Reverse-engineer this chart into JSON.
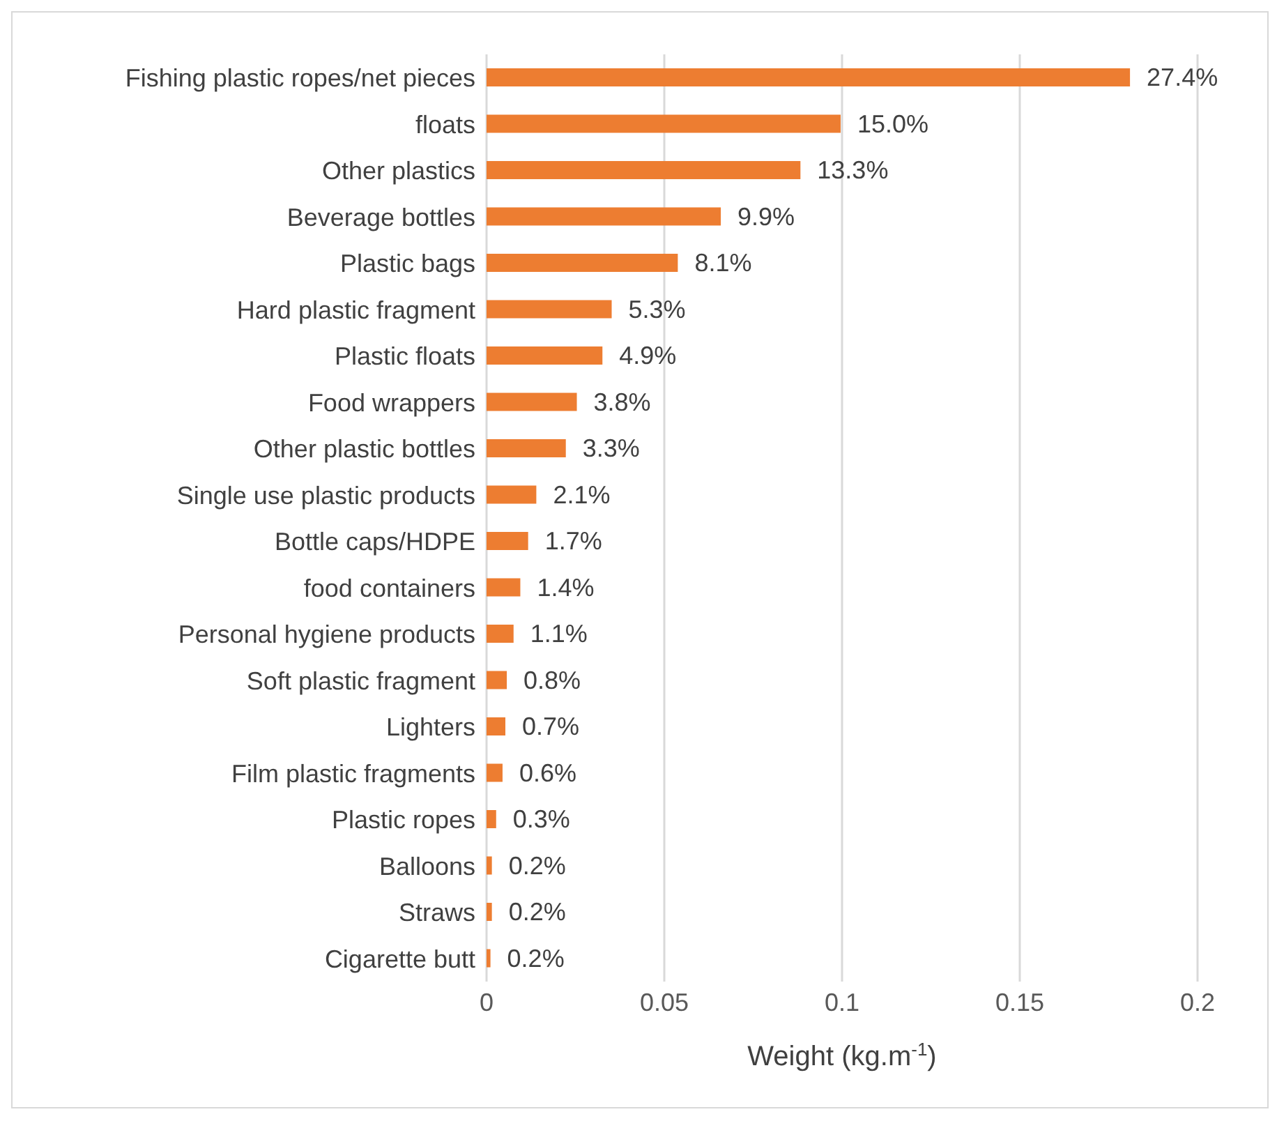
{
  "chart_data": {
    "type": "bar",
    "orientation": "horizontal",
    "xlabel": "Weight (kg.m$^{-1}$)",
    "categories": [
      "Fishing plastic ropes/net pieces",
      "floats",
      "Other plastics",
      "Beverage bottles",
      "Plastic bags",
      "Hard plastic fragment",
      "Plastic floats",
      "Food wrappers",
      "Other plastic bottles",
      "Single use plastic products",
      "Bottle caps/HDPE",
      "food containers",
      "Personal hygiene products",
      "Soft plastic fragment",
      "Lighters",
      "Film plastic fragments",
      "Plastic ropes",
      "Balloons",
      "Straws",
      "Cigarette butt"
    ],
    "values": [
      0.181,
      0.0996,
      0.0883,
      0.0659,
      0.0538,
      0.0352,
      0.0326,
      0.0254,
      0.0223,
      0.014,
      0.0117,
      0.0095,
      0.0076,
      0.0057,
      0.0053,
      0.0045,
      0.0027,
      0.0015,
      0.0015,
      0.0011
    ],
    "annotations": [
      {
        "text": "27.4%",
        "x": 0.181,
        "y": "Fishing plastic ropes/net pieces"
      },
      {
        "text": "15.0%",
        "x": 0.0996,
        "y": "floats"
      },
      {
        "text": "13.3%",
        "x": 0.0883,
        "y": "Other plastics"
      },
      {
        "text": "9.9%",
        "x": 0.0659,
        "y": "Beverage bottles"
      },
      {
        "text": "8.1%",
        "x": 0.0538,
        "y": "Plastic bags"
      },
      {
        "text": "5.3%",
        "x": 0.0352,
        "y": "Hard plastic fragment"
      },
      {
        "text": "4.9%",
        "x": 0.0326,
        "y": "Plastic floats"
      },
      {
        "text": "3.8%",
        "x": 0.0254,
        "y": "Food wrappers"
      },
      {
        "text": "3.3%",
        "x": 0.0223,
        "y": "Other plastic bottles"
      },
      {
        "text": "2.1%",
        "x": 0.014,
        "y": "Single use plastic products"
      },
      {
        "text": "1.7%",
        "x": 0.0117,
        "y": "Bottle caps/HDPE"
      },
      {
        "text": "1.4%",
        "x": 0.0095,
        "y": "food containers"
      },
      {
        "text": "1.1%",
        "x": 0.0076,
        "y": "Personal hygiene products"
      },
      {
        "text": "0.8%",
        "x": 0.0057,
        "y": "Soft plastic fragment"
      },
      {
        "text": "0.7%",
        "x": 0.0053,
        "y": "Lighters"
      },
      {
        "text": "0.6%",
        "x": 0.0045,
        "y": "Film plastic fragments"
      },
      {
        "text": "0.3%",
        "x": 0.0027,
        "y": "Plastic ropes"
      },
      {
        "text": "0.2%",
        "x": 0.0015,
        "y": "Balloons"
      },
      {
        "text": "0.2%",
        "x": 0.0015,
        "y": "Straws"
      },
      {
        "text": "0.2%",
        "x": 0.0011,
        "y": "Cigarette butt"
      }
    ],
    "color": "#ed7d31",
    "xlim": [
      0,
      0.2
    ],
    "xticks": [
      0,
      0.05,
      0.1,
      0.15,
      0.2
    ],
    "grid": "x",
    "legend": false
  }
}
